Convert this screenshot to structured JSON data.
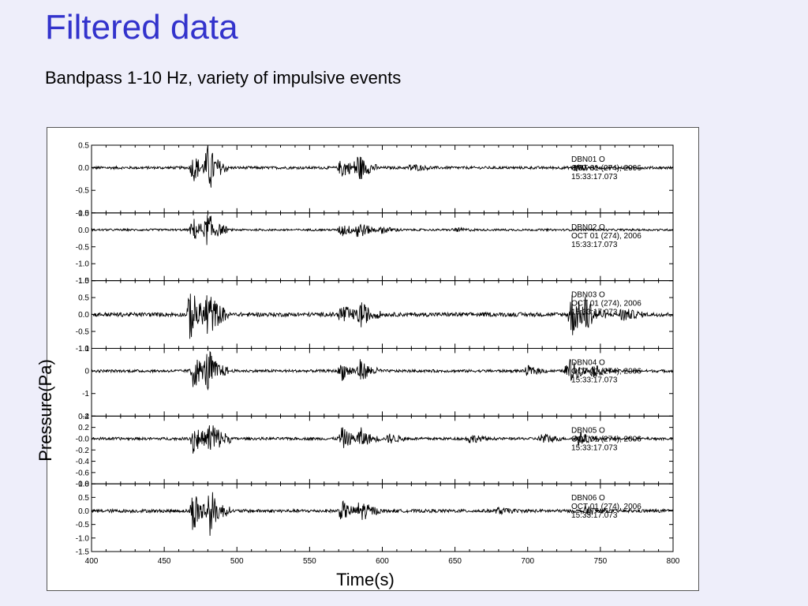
{
  "slide": {
    "title": "Filtered data",
    "subtitle": "Bandpass 1-10 Hz, variety of impulsive events"
  },
  "colors": {
    "title": "#3333cc",
    "background": "#eeeefa",
    "trace": "#000000"
  },
  "chart_data": {
    "type": "line",
    "xlabel": "Time(s)",
    "ylabel": "Pressure(Pa)",
    "xlim": [
      400,
      800
    ],
    "xticks": [
      "400",
      "450",
      "500",
      "550",
      "600",
      "650",
      "700",
      "750",
      "800"
    ],
    "grid": false,
    "panels": [
      {
        "station": "DBN01",
        "component": "O",
        "date_line": "OCT 01 (274), 2006",
        "time_line": "15:33:17.073",
        "ylim": [
          -1.0,
          0.5
        ],
        "yticks": [
          "0.5",
          "0.0",
          "-0.5",
          "-1.0"
        ],
        "events": [
          [
            470,
            0.6
          ],
          [
            480,
            0.9
          ],
          [
            572,
            0.45
          ],
          [
            583,
            0.6
          ],
          [
            620,
            0.15
          ],
          [
            733,
            0.15
          ]
        ]
      },
      {
        "station": "DBN02",
        "component": "O",
        "date_line": "OCT 01 (274), 2006",
        "time_line": "15:33:17.073",
        "ylim": [
          -1.5,
          0.5
        ],
        "yticks": [
          "0.5",
          "0.0",
          "-0.5",
          "-1.0",
          "-1.5"
        ],
        "events": [
          [
            470,
            0.7
          ],
          [
            480,
            0.9
          ],
          [
            572,
            0.4
          ],
          [
            583,
            0.55
          ],
          [
            600,
            0.2
          ],
          [
            650,
            0.1
          ]
        ]
      },
      {
        "station": "DBN03",
        "component": "O",
        "date_line": "OCT 01 (274), 2006",
        "time_line": "15:33:17.073",
        "ylim": [
          -1.0,
          1.0
        ],
        "yticks": [
          "1.0",
          "0.5",
          "0.0",
          "-0.5",
          "-1.0"
        ],
        "events": [
          [
            468,
            0.8
          ],
          [
            480,
            0.75
          ],
          [
            572,
            0.3
          ],
          [
            585,
            0.35
          ],
          [
            730,
            0.7
          ],
          [
            740,
            0.4
          ],
          [
            765,
            0.2
          ]
        ]
      },
      {
        "station": "DBN04",
        "component": "O",
        "date_line": "OCT 01 (274), 2006",
        "time_line": "15:33:17.073",
        "ylim": [
          -2,
          1
        ],
        "yticks": [
          "1",
          "0",
          "-1",
          "-2"
        ],
        "events": [
          [
            470,
            0.8
          ],
          [
            480,
            0.85
          ],
          [
            572,
            0.4
          ],
          [
            585,
            0.45
          ],
          [
            700,
            0.2
          ],
          [
            728,
            0.6
          ],
          [
            745,
            0.25
          ]
        ]
      },
      {
        "station": "DBN05",
        "component": "O",
        "date_line": "OCT 01 (274), 2006",
        "time_line": "15:33:17.073",
        "ylim": [
          -0.8,
          0.4
        ],
        "yticks": [
          "0.4",
          "0.2",
          "-0.0",
          "-0.2",
          "-0.4",
          "-0.6",
          "-0.8"
        ],
        "events": [
          [
            470,
            0.75
          ],
          [
            482,
            0.9
          ],
          [
            572,
            0.5
          ],
          [
            585,
            0.4
          ],
          [
            605,
            0.2
          ],
          [
            660,
            0.2
          ],
          [
            710,
            0.25
          ],
          [
            735,
            0.3
          ]
        ]
      },
      {
        "station": "DBN06",
        "component": "O",
        "date_line": "OCT 01 (274), 2006",
        "time_line": "15:33:17.073",
        "ylim": [
          -1.5,
          1.0
        ],
        "yticks": [
          "1.0",
          "0.5",
          "0.0",
          "-0.5",
          "-1.0",
          "-1.5"
        ],
        "events": [
          [
            470,
            0.8
          ],
          [
            481,
            0.75
          ],
          [
            572,
            0.35
          ],
          [
            585,
            0.4
          ],
          [
            680,
            0.1
          ],
          [
            740,
            0.15
          ]
        ]
      }
    ]
  }
}
